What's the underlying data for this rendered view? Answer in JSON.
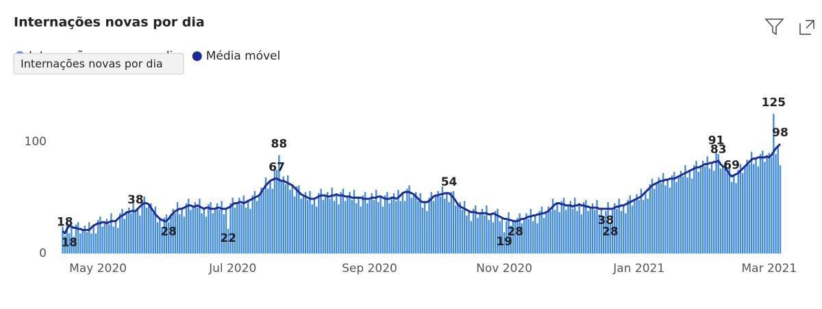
{
  "chart_data": {
    "type": "combo",
    "title": "Internações novas por dia",
    "categories": [
      null,
      null,
      null,
      null,
      null,
      null,
      null,
      null,
      null,
      null,
      null,
      null,
      null,
      null,
      null,
      null,
      "May 2020",
      null,
      null,
      null,
      null,
      null,
      null,
      null,
      null,
      null,
      null,
      null,
      null,
      null,
      null,
      null,
      null,
      null,
      null,
      null,
      null,
      null,
      null,
      null,
      null,
      null,
      null,
      null,
      null,
      null,
      null,
      null,
      null,
      null,
      null,
      null,
      null,
      null,
      null,
      null,
      null,
      null,
      null,
      null,
      null,
      null,
      null,
      null,
      null,
      null,
      null,
      null,
      null,
      null,
      null,
      null,
      null,
      null,
      null,
      null,
      null,
      "Jul 2020",
      null,
      null,
      null,
      null,
      null,
      null,
      null,
      null,
      null,
      null,
      null,
      null,
      null,
      null,
      null,
      null,
      null,
      null,
      null,
      null,
      null,
      null,
      null,
      null,
      null,
      null,
      null,
      null,
      null,
      null,
      null,
      null,
      null,
      null,
      null,
      null,
      null,
      null,
      null,
      null,
      null,
      null,
      null,
      null,
      null,
      null,
      null,
      null,
      null,
      null,
      null,
      null,
      null,
      null,
      null,
      null,
      null,
      null,
      null,
      null,
      null,
      "Sep 2020",
      null,
      null,
      null,
      null,
      null,
      null,
      null,
      null,
      null,
      null,
      null,
      null,
      null,
      null,
      null,
      null,
      null,
      null,
      null,
      null,
      null,
      null,
      null,
      null,
      null,
      null,
      null,
      null,
      null,
      null,
      null,
      null,
      null,
      null,
      null,
      null,
      null,
      null,
      null,
      null,
      null,
      null,
      null,
      null,
      null,
      null,
      null,
      null,
      null,
      null,
      null,
      null,
      null,
      null,
      null,
      null,
      null,
      null,
      null,
      null,
      "Nov 2020",
      null,
      null,
      null,
      null,
      null,
      null,
      null,
      null,
      null,
      null,
      null,
      null,
      null,
      null,
      null,
      null,
      null,
      null,
      null,
      null,
      null,
      null,
      null,
      null,
      null,
      null,
      null,
      null,
      null,
      null,
      null,
      null,
      null,
      null,
      null,
      null,
      null,
      null,
      null,
      null,
      null,
      null,
      null,
      null,
      null,
      null,
      null,
      null,
      null,
      null,
      null,
      null,
      null,
      null,
      null,
      null,
      null,
      null,
      null,
      null,
      "Jan 2021",
      null,
      null,
      null,
      null,
      null,
      null,
      null,
      null,
      null,
      null,
      null,
      null,
      null,
      null,
      null,
      null,
      null,
      null,
      null,
      null,
      null,
      null,
      null,
      null,
      null,
      null,
      null,
      null,
      null,
      null,
      null,
      null,
      null,
      null,
      null,
      null,
      null,
      null,
      null,
      null,
      null,
      null,
      null,
      null,
      null,
      null,
      null,
      null,
      null,
      null,
      null,
      null,
      null,
      null,
      null,
      null,
      null,
      null,
      "Mar 2021",
      null,
      null,
      null,
      null,
      null
    ],
    "series": [
      {
        "name": "Internações novas por dia",
        "type": "bar",
        "color": "#3f8be4",
        "labeled_points": [
          3,
          48,
          75,
          98,
          200,
          205,
          246,
          248,
          296,
          322
        ],
        "values": [
          24,
          16,
          29,
          18,
          25,
          15,
          26,
          28,
          18,
          20,
          25,
          19,
          28,
          18,
          26,
          18,
          30,
          33,
          24,
          27,
          31,
          26,
          36,
          24,
          30,
          23,
          36,
          40,
          31,
          36,
          41,
          36,
          45,
          38,
          41,
          34,
          47,
          51,
          41,
          43,
          45,
          36,
          42,
          28,
          32,
          22,
          32,
          35,
          28,
          33,
          40,
          36,
          46,
          35,
          41,
          33,
          45,
          49,
          39,
          41,
          46,
          41,
          49,
          36,
          41,
          33,
          44,
          46,
          36,
          39,
          45,
          39,
          47,
          35,
          41,
          22,
          45,
          50,
          41,
          44,
          50,
          44,
          52,
          41,
          48,
          40,
          52,
          56,
          47,
          51,
          59,
          56,
          68,
          58,
          66,
          58,
          76,
          75,
          88,
          64,
          69,
          62,
          70,
          57,
          62,
          51,
          60,
          61,
          49,
          51,
          55,
          48,
          56,
          44,
          50,
          42,
          54,
          58,
          48,
          51,
          55,
          49,
          59,
          47,
          54,
          44,
          55,
          58,
          47,
          50,
          55,
          48,
          57,
          45,
          51,
          42,
          52,
          55,
          45,
          48,
          54,
          48,
          57,
          46,
          52,
          42,
          52,
          55,
          45,
          49,
          54,
          47,
          57,
          47,
          55,
          47,
          58,
          61,
          50,
          52,
          55,
          47,
          54,
          41,
          47,
          38,
          50,
          55,
          47,
          51,
          56,
          51,
          60,
          49,
          55,
          46,
          55,
          56,
          43,
          43,
          46,
          39,
          47,
          34,
          39,
          29,
          40,
          43,
          32,
          35,
          40,
          34,
          43,
          30,
          36,
          28,
          38,
          40,
          29,
          31,
          19,
          29,
          37,
          25,
          30,
          28,
          32,
          36,
          27,
          30,
          36,
          31,
          40,
          29,
          35,
          27,
          38,
          42,
          32,
          36,
          42,
          38,
          49,
          39,
          46,
          37,
          47,
          50,
          39,
          42,
          47,
          40,
          50,
          38,
          45,
          35,
          46,
          48,
          38,
          40,
          45,
          39,
          48,
          35,
          41,
          32,
          38,
          46,
          28,
          39,
          45,
          40,
          49,
          38,
          44,
          36,
          48,
          52,
          43,
          47,
          53,
          48,
          58,
          48,
          56,
          49,
          62,
          67,
          58,
          62,
          68,
          63,
          72,
          61,
          67,
          59,
          70,
          73,
          64,
          68,
          74,
          69,
          79,
          68,
          75,
          67,
          79,
          83,
          73,
          77,
          83,
          78,
          87,
          76,
          82,
          74,
          91,
          89,
          76,
          77,
          81,
          72,
          78,
          64,
          71,
          63,
          75,
          80,
          72,
          77,
          84,
          80,
          91,
          80,
          86,
          78,
          89,
          92,
          82,
          86,
          90,
          86,
          125,
          89,
          97,
          79
        ]
      },
      {
        "name": "Média móvel",
        "type": "line",
        "color": "#1b2b9a",
        "labeled_points": [
          1,
          33,
          97,
          175,
          297,
          303,
          325
        ],
        "values": [
          20,
          18,
          22,
          25,
          24,
          23,
          23,
          22,
          22,
          21,
          21,
          21,
          21,
          23,
          25,
          26,
          27,
          27,
          28,
          28,
          27,
          28,
          29,
          29,
          29,
          31,
          33,
          34,
          35,
          37,
          37,
          38,
          38,
          38,
          40,
          42,
          44,
          45,
          45,
          44,
          41,
          38,
          35,
          33,
          31,
          30,
          29,
          29,
          31,
          34,
          36,
          38,
          39,
          40,
          40,
          41,
          42,
          43,
          43,
          42,
          42,
          43,
          42,
          41,
          40,
          41,
          41,
          40,
          40,
          40,
          41,
          41,
          40,
          40,
          40,
          41,
          42,
          44,
          45,
          45,
          46,
          46,
          45,
          46,
          47,
          48,
          49,
          50,
          51,
          52,
          55,
          58,
          61,
          63,
          65,
          66,
          67,
          67,
          66,
          65,
          65,
          64,
          63,
          62,
          61,
          59,
          57,
          55,
          53,
          52,
          51,
          50,
          49,
          49,
          49,
          50,
          51,
          52,
          52,
          52,
          51,
          51,
          52,
          52,
          53,
          52,
          52,
          52,
          51,
          51,
          51,
          50,
          50,
          50,
          50,
          50,
          49,
          49,
          49,
          49,
          50,
          50,
          50,
          51,
          51,
          50,
          49,
          49,
          49,
          50,
          50,
          49,
          50,
          52,
          54,
          55,
          55,
          55,
          54,
          53,
          51,
          49,
          47,
          46,
          46,
          46,
          47,
          49,
          51,
          52,
          52,
          53,
          53,
          54,
          54,
          54,
          52,
          50,
          47,
          44,
          42,
          41,
          40,
          39,
          38,
          37,
          37,
          37,
          36,
          36,
          36,
          36,
          36,
          35,
          35,
          36,
          35,
          34,
          33,
          32,
          31,
          31,
          30,
          30,
          29,
          29,
          29,
          30,
          31,
          31,
          32,
          33,
          33,
          34,
          34,
          35,
          35,
          36,
          36,
          37,
          38,
          40,
          42,
          44,
          45,
          45,
          44,
          44,
          43,
          43,
          43,
          42,
          43,
          43,
          44,
          43,
          43,
          42,
          42,
          41,
          41,
          41,
          41,
          40,
          40,
          40,
          40,
          40,
          40,
          40,
          41,
          42,
          42,
          43,
          43,
          44,
          45,
          46,
          47,
          48,
          49,
          50,
          51,
          53,
          55,
          57,
          59,
          61,
          62,
          63,
          64,
          65,
          65,
          66,
          66,
          67,
          67,
          67,
          68,
          69,
          70,
          71,
          72,
          73,
          74,
          75,
          76,
          77,
          77,
          78,
          79,
          80,
          80,
          81,
          81,
          82,
          82,
          83,
          80,
          78,
          77,
          74,
          71,
          69,
          70,
          71,
          72,
          74,
          76,
          78,
          80,
          82,
          84,
          85,
          85,
          86,
          86,
          86,
          86,
          87,
          86,
          88,
          91,
          94,
          96,
          98
        ]
      }
    ],
    "ylim": [
      0,
      130
    ],
    "yticks": [
      0,
      100
    ],
    "grid": false
  }
}
